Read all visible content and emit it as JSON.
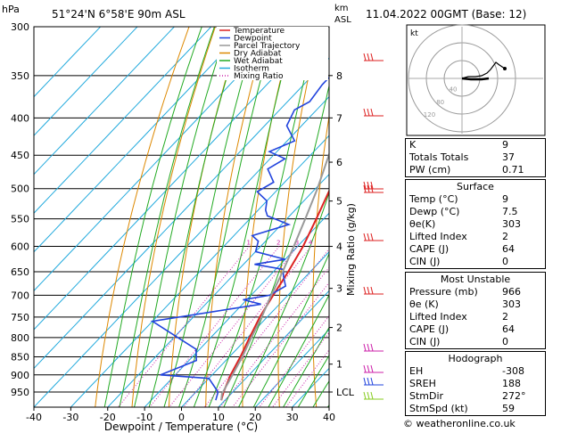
{
  "header": {
    "hpa_label": "hPa",
    "location": "51°24'N  6°58'E  90m  ASL",
    "km_label": "km",
    "asl_label": "ASL",
    "datetime": "11.04.2022  00GMT  (Base: 12)"
  },
  "colors": {
    "temperature": "#dd2222",
    "dewpoint": "#2244dd",
    "parcel": "#999999",
    "dry_adiabat": "#dd8800",
    "wet_adiabat": "#22aa22",
    "isotherm": "#22aadd",
    "mixing_ratio": "#cc22aa"
  },
  "legend": [
    "Temperature",
    "Dewpoint",
    "Parcel Trajectory",
    "Dry Adiabat",
    "Wet Adiabat",
    "Isotherm",
    "Mixing Ratio"
  ],
  "chart_data": {
    "type": "line",
    "xlabel": "Dewpoint / Temperature (°C)",
    "ylabel_right": "Mixing Ratio (g/kg)",
    "xlim": [
      -40,
      40
    ],
    "ylim": [
      300,
      1000
    ],
    "skew": true,
    "pressure_ticks": [
      300,
      350,
      400,
      450,
      500,
      550,
      600,
      650,
      700,
      750,
      800,
      850,
      900,
      950
    ],
    "temperature_ticks": [
      -40,
      -30,
      -20,
      -10,
      0,
      10,
      20,
      30,
      40
    ],
    "height_ticks_km": [
      {
        "label": "8",
        "p": 350
      },
      {
        "label": "7",
        "p": 400
      },
      {
        "label": "6",
        "p": 460
      },
      {
        "label": "5",
        "p": 520
      },
      {
        "label": "4",
        "p": 600
      },
      {
        "label": "3",
        "p": 685
      },
      {
        "label": "2",
        "p": 775
      },
      {
        "label": "1",
        "p": 870
      },
      {
        "label": "LCL",
        "p": 950
      }
    ],
    "mixing_ratio_labels": [
      "1",
      "2",
      "3",
      "4",
      "6",
      "8",
      "10",
      "16",
      "20",
      "25"
    ],
    "series": [
      {
        "name": "Temperature",
        "points": [
          [
            9,
            975
          ],
          [
            7.5,
            950
          ],
          [
            5,
            900
          ],
          [
            3,
            850
          ],
          [
            0.5,
            800
          ],
          [
            -2,
            750
          ],
          [
            -4,
            700
          ],
          [
            -6,
            650
          ],
          [
            -8.5,
            600
          ],
          [
            -12,
            550
          ],
          [
            -16,
            500
          ],
          [
            -21,
            450
          ],
          [
            -26,
            400
          ],
          [
            -32,
            350
          ],
          [
            -38,
            300
          ]
        ]
      },
      {
        "name": "Dewpoint",
        "points": [
          [
            7.5,
            975
          ],
          [
            6,
            950
          ],
          [
            0,
            910
          ],
          [
            -14,
            900
          ],
          [
            -8,
            860
          ],
          [
            -11,
            830
          ],
          [
            -30,
            760
          ],
          [
            -5,
            720
          ],
          [
            -11,
            710
          ],
          [
            -5,
            700
          ],
          [
            -3,
            680
          ],
          [
            -6,
            660
          ],
          [
            -8,
            645
          ],
          [
            -17,
            635
          ],
          [
            -10,
            625
          ],
          [
            -20,
            610
          ],
          [
            -22,
            590
          ],
          [
            -25,
            580
          ],
          [
            -18,
            560
          ],
          [
            -26,
            545
          ],
          [
            -28,
            535
          ],
          [
            -30,
            520
          ],
          [
            -35,
            505
          ],
          [
            -33,
            490
          ],
          [
            -38,
            470
          ],
          [
            -36,
            455
          ],
          [
            -42,
            445
          ],
          [
            -38,
            430
          ],
          [
            -44,
            410
          ],
          [
            -46,
            390
          ],
          [
            -44,
            380
          ],
          [
            -45,
            360
          ],
          [
            -45,
            340
          ],
          [
            -52,
            310
          ],
          [
            -60,
            295
          ]
        ]
      },
      {
        "name": "Parcel Trajectory",
        "points": [
          [
            9,
            975
          ],
          [
            7.5,
            955
          ],
          [
            5.5,
            900
          ],
          [
            3.5,
            850
          ],
          [
            1,
            800
          ],
          [
            -1.5,
            750
          ],
          [
            -4.5,
            700
          ],
          [
            -7.5,
            650
          ],
          [
            -11,
            600
          ],
          [
            -15,
            550
          ],
          [
            -19.5,
            500
          ],
          [
            -25,
            450
          ],
          [
            -31,
            400
          ],
          [
            -38,
            350
          ],
          [
            -46,
            300
          ]
        ]
      }
    ]
  },
  "stats": {
    "k_label": "K",
    "k": "9",
    "tt_label": "Totals Totals",
    "tt": "37",
    "pw_label": "PW (cm)",
    "pw": "0.71"
  },
  "surface": {
    "title": "Surface",
    "temp_label": "Temp (°C)",
    "temp": "9",
    "dewp_label": "Dewp (°C)",
    "dewp": "7.5",
    "theta_label": "θe(K)",
    "theta": "303",
    "li_label": "Lifted Index",
    "li": "2",
    "cape_label": "CAPE (J)",
    "cape": "64",
    "cin_label": "CIN (J)",
    "cin": "0"
  },
  "most_unstable": {
    "title": "Most Unstable",
    "pressure_label": "Pressure (mb)",
    "pressure": "966",
    "theta_label": "θe (K)",
    "theta": "303",
    "li_label": "Lifted Index",
    "li": "2",
    "cape_label": "CAPE (J)",
    "cape": "64",
    "cin_label": "CIN (J)",
    "cin": "0"
  },
  "hodograph": {
    "title": "Hodograph",
    "label": "kt",
    "ring_labels": [
      "40",
      "80",
      "120"
    ],
    "eh_label": "EH",
    "eh": "-308",
    "sreh_label": "SREH",
    "sreh": "188",
    "stmdir_label": "StmDir",
    "stmdir": "272°",
    "stmspd_label": "StmSpd (kt)",
    "stmspd": "59"
  },
  "footer": "© weatheronline.co.uk"
}
